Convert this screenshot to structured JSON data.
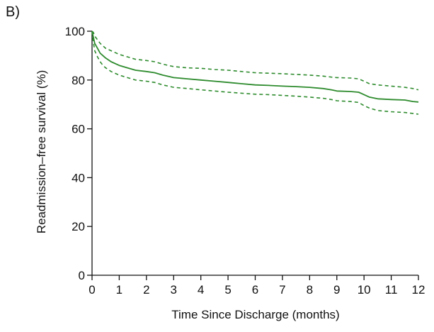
{
  "panel_label": "B)",
  "chart_data": {
    "type": "line",
    "title": "",
    "xlabel": "Time Since Discharge (months)",
    "ylabel": "Readmission–free survival (%)",
    "xlim": [
      0,
      12
    ],
    "ylim": [
      0,
      100
    ],
    "xticks": [
      "0",
      "1",
      "2",
      "3",
      "4",
      "5",
      "6",
      "7",
      "8",
      "9",
      "10",
      "11",
      "12"
    ],
    "yticks": [
      "0",
      "20",
      "40",
      "60",
      "80",
      "100"
    ],
    "grid": false,
    "colors": {
      "line": "#2e8b2e"
    },
    "series": [
      {
        "role": "estimate",
        "style": "solid",
        "x": [
          0,
          0.05,
          0.1,
          0.2,
          0.3,
          0.4,
          0.5,
          0.7,
          1.0,
          1.3,
          1.6,
          2.0,
          2.3,
          2.6,
          2.8,
          3.0,
          3.5,
          4.0,
          4.5,
          5.0,
          5.5,
          6.0,
          6.5,
          7.0,
          7.5,
          8.0,
          8.5,
          8.8,
          9.0,
          9.5,
          9.8,
          10.0,
          10.2,
          10.5,
          11.0,
          11.5,
          11.8,
          12.0
        ],
        "y": [
          100,
          97.5,
          95,
          93,
          91,
          90,
          89,
          87.5,
          86,
          85,
          84,
          83.5,
          83,
          82,
          81.5,
          81,
          80.5,
          80,
          79.5,
          79,
          78.5,
          78,
          77.8,
          77.5,
          77.3,
          77,
          76.5,
          76,
          75.5,
          75.3,
          75,
          74,
          73,
          72.3,
          72,
          71.8,
          71.2,
          71
        ]
      },
      {
        "role": "upper-ci",
        "style": "dashed",
        "x": [
          0,
          0.05,
          0.1,
          0.2,
          0.3,
          0.4,
          0.5,
          0.7,
          1.0,
          1.3,
          1.6,
          2.0,
          2.3,
          2.6,
          2.8,
          3.0,
          3.5,
          4.0,
          4.5,
          5.0,
          5.5,
          6.0,
          6.5,
          7.0,
          7.5,
          8.0,
          8.5,
          8.8,
          9.0,
          9.5,
          9.8,
          10.0,
          10.2,
          10.5,
          11.0,
          11.5,
          11.8,
          12.0
        ],
        "y": [
          100,
          99.5,
          98,
          96.5,
          95,
          94,
          93,
          92,
          90.5,
          89.5,
          88.5,
          88,
          87.5,
          86.5,
          86,
          85.5,
          85,
          84.8,
          84.3,
          84,
          83.5,
          83,
          82.8,
          82.6,
          82.3,
          82,
          81.6,
          81.2,
          81,
          80.8,
          80.5,
          79.5,
          78.5,
          78,
          77.5,
          77,
          76.5,
          76
        ]
      },
      {
        "role": "lower-ci",
        "style": "dashed",
        "x": [
          0,
          0.05,
          0.1,
          0.2,
          0.3,
          0.4,
          0.5,
          0.7,
          1.0,
          1.3,
          1.6,
          2.0,
          2.3,
          2.6,
          2.8,
          3.0,
          3.5,
          4.0,
          4.5,
          5.0,
          5.5,
          6.0,
          6.5,
          7.0,
          7.5,
          8.0,
          8.5,
          8.8,
          9.0,
          9.5,
          9.8,
          10.0,
          10.2,
          10.5,
          11.0,
          11.5,
          11.8,
          12.0
        ],
        "y": [
          100,
          95.5,
          92,
          89.5,
          87.5,
          86,
          85,
          83.5,
          82,
          81,
          80,
          79.5,
          79,
          78,
          77.5,
          77,
          76.5,
          76,
          75.5,
          75,
          74.6,
          74.2,
          74,
          73.7,
          73.4,
          73,
          72.5,
          72,
          71.5,
          71.2,
          70.8,
          69.5,
          68.5,
          67.5,
          67,
          66.7,
          66.3,
          66
        ]
      }
    ]
  }
}
